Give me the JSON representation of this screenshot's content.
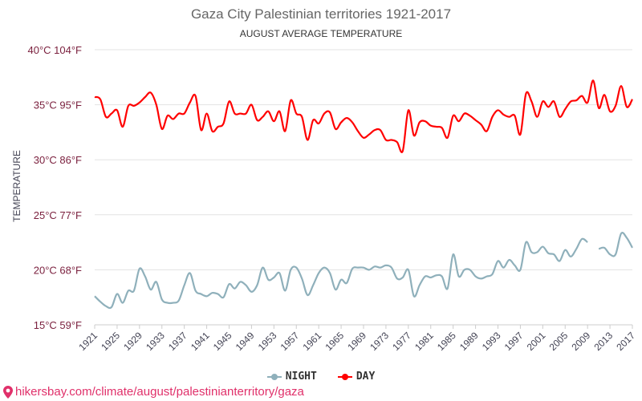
{
  "chart_data": {
    "type": "line",
    "title": "Gaza City Palestinian territories 1921-2017",
    "subtitle": "AUGUST AVERAGE TEMPERATURE",
    "ylabel": "TEMPERATURE",
    "xlabel": "",
    "ylim": [
      15,
      40
    ],
    "xlim": [
      1921,
      2017
    ],
    "grid": true,
    "legend_position": "bottom",
    "yticks": [
      {
        "value": 15,
        "label": "15°C 59°F"
      },
      {
        "value": 20,
        "label": "20°C 68°F"
      },
      {
        "value": 25,
        "label": "25°C 77°F"
      },
      {
        "value": 30,
        "label": "30°C 86°F"
      },
      {
        "value": 35,
        "label": "35°C 95°F"
      },
      {
        "value": 40,
        "label": "40°C 104°F"
      }
    ],
    "xticks": [
      "1921",
      "1925",
      "1929",
      "1933",
      "1937",
      "1941",
      "1945",
      "1949",
      "1953",
      "1957",
      "1961",
      "1965",
      "1969",
      "1973",
      "1977",
      "1981",
      "1985",
      "1989",
      "1993",
      "1997",
      "2001",
      "2005",
      "2009",
      "2013",
      "2017"
    ],
    "x_start": 1921,
    "series": [
      {
        "name": "NIGHT",
        "color": "#8fb0bb",
        "values": [
          17.6,
          17.1,
          16.7,
          16.6,
          17.8,
          17.0,
          18.1,
          18.1,
          20.1,
          19.4,
          18.2,
          18.9,
          17.3,
          17.0,
          17.0,
          17.2,
          18.6,
          19.7,
          18.1,
          17.8,
          17.6,
          17.9,
          17.8,
          17.5,
          18.7,
          18.3,
          18.9,
          18.6,
          18.0,
          18.6,
          20.2,
          19.1,
          19.3,
          19.7,
          18.1,
          20.0,
          20.2,
          19.2,
          17.7,
          18.6,
          19.7,
          20.2,
          19.7,
          18.2,
          19.1,
          18.8,
          20.1,
          20.2,
          20.2,
          20.0,
          20.3,
          20.2,
          20.4,
          20.2,
          19.2,
          19.3,
          20.0,
          17.6,
          18.6,
          19.4,
          19.3,
          19.5,
          19.4,
          18.3,
          21.4,
          19.4,
          20.0,
          20.0,
          19.4,
          19.2,
          19.4,
          19.6,
          20.8,
          20.2,
          20.9,
          20.4,
          20.0,
          22.5,
          21.6,
          21.6,
          22.1,
          21.5,
          21.4,
          20.8,
          21.8,
          21.2,
          21.9,
          22.8,
          22.5,
          null,
          21.9,
          22.0,
          21.4,
          21.4,
          23.3,
          22.9,
          22.0
        ]
      },
      {
        "name": "DAY",
        "color": "#ff0000",
        "values": [
          35.7,
          35.5,
          33.9,
          34.2,
          34.5,
          33.0,
          34.9,
          34.9,
          35.2,
          35.7,
          36.1,
          35.0,
          32.8,
          34.0,
          33.7,
          34.2,
          34.2,
          35.2,
          35.8,
          32.7,
          34.2,
          32.6,
          33.0,
          33.3,
          35.3,
          34.2,
          34.2,
          34.2,
          35.0,
          33.6,
          33.9,
          34.4,
          33.5,
          34.4,
          32.6,
          35.4,
          34.2,
          33.9,
          31.8,
          33.6,
          33.3,
          34.2,
          34.3,
          32.8,
          33.4,
          33.8,
          33.4,
          32.6,
          32.0,
          32.3,
          32.7,
          32.7,
          31.8,
          31.8,
          31.6,
          30.8,
          34.5,
          32.2,
          33.4,
          33.5,
          33.1,
          33.0,
          32.9,
          32.0,
          34.0,
          33.5,
          34.2,
          34.0,
          33.6,
          33.2,
          32.6,
          33.9,
          34.5,
          34.1,
          33.9,
          34.0,
          32.3,
          36.0,
          35.3,
          33.9,
          35.3,
          34.8,
          35.3,
          33.9,
          34.6,
          35.3,
          35.4,
          35.8,
          35.2,
          37.2,
          34.7,
          35.9,
          34.4,
          34.9,
          36.7,
          34.8,
          35.5
        ]
      }
    ]
  },
  "footer": {
    "url": "hikersbay.com/climate/august/palestinianterritory/gaza",
    "icon": "map-pin-icon"
  }
}
